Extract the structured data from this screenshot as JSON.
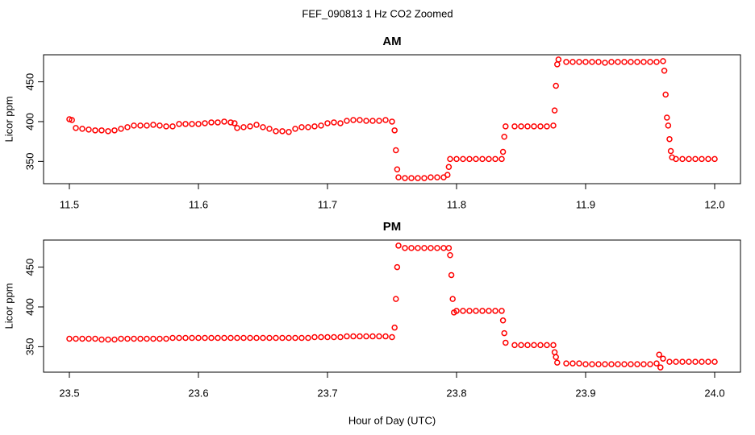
{
  "title": "FEF_090813  1 Hz CO2 Zoomed",
  "chart_data": [
    {
      "type": "scatter",
      "title": "AM",
      "y_label": "Licor ppm",
      "color": "#ff0000",
      "xlim": [
        11.48,
        12.02
      ],
      "ylim": [
        322,
        484
      ],
      "xticks": [
        11.5,
        11.6,
        11.7,
        11.8,
        11.9,
        {
          "value": 12,
          "label": "12.0"
        }
      ],
      "yticks": [
        350,
        400,
        450
      ],
      "x": [
        11.5,
        11.502,
        11.505,
        11.51,
        11.515,
        11.52,
        11.525,
        11.53,
        11.535,
        11.54,
        11.545,
        11.55,
        11.555,
        11.56,
        11.565,
        11.57,
        11.575,
        11.58,
        11.585,
        11.59,
        11.595,
        11.6,
        11.605,
        11.61,
        11.615,
        11.62,
        11.625,
        11.628,
        11.63,
        11.635,
        11.64,
        11.645,
        11.65,
        11.655,
        11.66,
        11.665,
        11.67,
        11.675,
        11.68,
        11.685,
        11.69,
        11.695,
        11.7,
        11.705,
        11.71,
        11.715,
        11.72,
        11.725,
        11.73,
        11.735,
        11.74,
        11.745,
        11.75,
        11.752,
        11.753,
        11.754,
        11.755,
        11.76,
        11.765,
        11.77,
        11.775,
        11.78,
        11.785,
        11.79,
        11.793,
        11.794,
        11.795,
        11.8,
        11.805,
        11.81,
        11.815,
        11.82,
        11.825,
        11.83,
        11.835,
        11.836,
        11.837,
        11.838,
        11.845,
        11.85,
        11.855,
        11.86,
        11.865,
        11.87,
        11.875,
        11.876,
        11.877,
        11.878,
        11.879,
        11.885,
        11.89,
        11.895,
        11.9,
        11.905,
        11.91,
        11.915,
        11.92,
        11.925,
        11.93,
        11.935,
        11.94,
        11.945,
        11.95,
        11.955,
        11.96,
        11.961,
        11.962,
        11.963,
        11.964,
        11.965,
        11.966,
        11.967,
        11.97,
        11.975,
        11.98,
        11.985,
        11.99,
        11.995,
        12.0
      ],
      "y": [
        403,
        402,
        392,
        391,
        390,
        389,
        389,
        388,
        389,
        391,
        393,
        395,
        395,
        395,
        396,
        395,
        394,
        394,
        397,
        397,
        397,
        397,
        398,
        399,
        399,
        400,
        399,
        398,
        392,
        393,
        394,
        396,
        393,
        391,
        388,
        388,
        387,
        391,
        393,
        393,
        394,
        395,
        398,
        399,
        398,
        401,
        402,
        402,
        401,
        401,
        401,
        402,
        400,
        389,
        364,
        340,
        330,
        329,
        329,
        329,
        329,
        330,
        330,
        330,
        333,
        343,
        353,
        353,
        353,
        353,
        353,
        353,
        353,
        353,
        353,
        362,
        381,
        394,
        394,
        394,
        394,
        394,
        394,
        394,
        395,
        414,
        445,
        472,
        478,
        475,
        475,
        475,
        475,
        475,
        475,
        474,
        475,
        475,
        475,
        475,
        475,
        475,
        475,
        475,
        476,
        464,
        434,
        405,
        395,
        378,
        363,
        355,
        353,
        353,
        353,
        353,
        353,
        353,
        353
      ]
    },
    {
      "type": "scatter",
      "title": "PM",
      "y_label": "Licor ppm",
      "x_label": "Hour of Day (UTC)",
      "color": "#ff0000",
      "xlim": [
        23.48,
        24.02
      ],
      "ylim": [
        318,
        484
      ],
      "xticks": [
        23.5,
        23.6,
        23.7,
        23.8,
        23.9,
        {
          "value": 24,
          "label": "24.0"
        }
      ],
      "yticks": [
        350,
        400,
        450
      ],
      "x": [
        23.5,
        23.505,
        23.51,
        23.515,
        23.52,
        23.525,
        23.53,
        23.535,
        23.54,
        23.545,
        23.55,
        23.555,
        23.56,
        23.565,
        23.57,
        23.575,
        23.58,
        23.585,
        23.59,
        23.595,
        23.6,
        23.605,
        23.61,
        23.615,
        23.62,
        23.625,
        23.63,
        23.635,
        23.64,
        23.645,
        23.65,
        23.655,
        23.66,
        23.665,
        23.67,
        23.675,
        23.68,
        23.685,
        23.69,
        23.695,
        23.7,
        23.705,
        23.71,
        23.715,
        23.72,
        23.725,
        23.73,
        23.735,
        23.74,
        23.745,
        23.75,
        23.752,
        23.753,
        23.754,
        23.755,
        23.76,
        23.765,
        23.77,
        23.775,
        23.78,
        23.785,
        23.79,
        23.794,
        23.795,
        23.796,
        23.797,
        23.798,
        23.8,
        23.805,
        23.81,
        23.815,
        23.82,
        23.825,
        23.83,
        23.835,
        23.836,
        23.837,
        23.838,
        23.845,
        23.85,
        23.855,
        23.86,
        23.865,
        23.87,
        23.875,
        23.876,
        23.877,
        23.878,
        23.885,
        23.89,
        23.895,
        23.9,
        23.905,
        23.91,
        23.915,
        23.92,
        23.925,
        23.93,
        23.935,
        23.94,
        23.945,
        23.95,
        23.955,
        23.957,
        23.958,
        23.96,
        23.965,
        23.97,
        23.975,
        23.98,
        23.985,
        23.99,
        23.995,
        24.0
      ],
      "y": [
        360,
        360,
        360,
        360,
        360,
        359,
        359,
        359,
        360,
        360,
        360,
        360,
        360,
        360,
        360,
        360,
        361,
        361,
        361,
        361,
        361,
        361,
        361,
        361,
        361,
        361,
        361,
        361,
        361,
        361,
        361,
        361,
        361,
        361,
        361,
        361,
        361,
        361,
        362,
        362,
        362,
        362,
        362,
        363,
        363,
        363,
        363,
        363,
        363,
        363,
        362,
        374,
        410,
        450,
        477,
        474,
        474,
        474,
        474,
        474,
        474,
        474,
        474,
        465,
        440,
        410,
        393,
        395,
        395,
        395,
        395,
        395,
        395,
        395,
        395,
        383,
        367,
        355,
        352,
        352,
        352,
        352,
        352,
        352,
        352,
        343,
        337,
        330,
        329,
        329,
        329,
        328,
        328,
        328,
        328,
        328,
        328,
        328,
        328,
        328,
        328,
        328,
        329,
        340,
        324,
        335,
        331,
        331,
        331,
        331,
        331,
        331,
        331,
        331
      ]
    }
  ]
}
